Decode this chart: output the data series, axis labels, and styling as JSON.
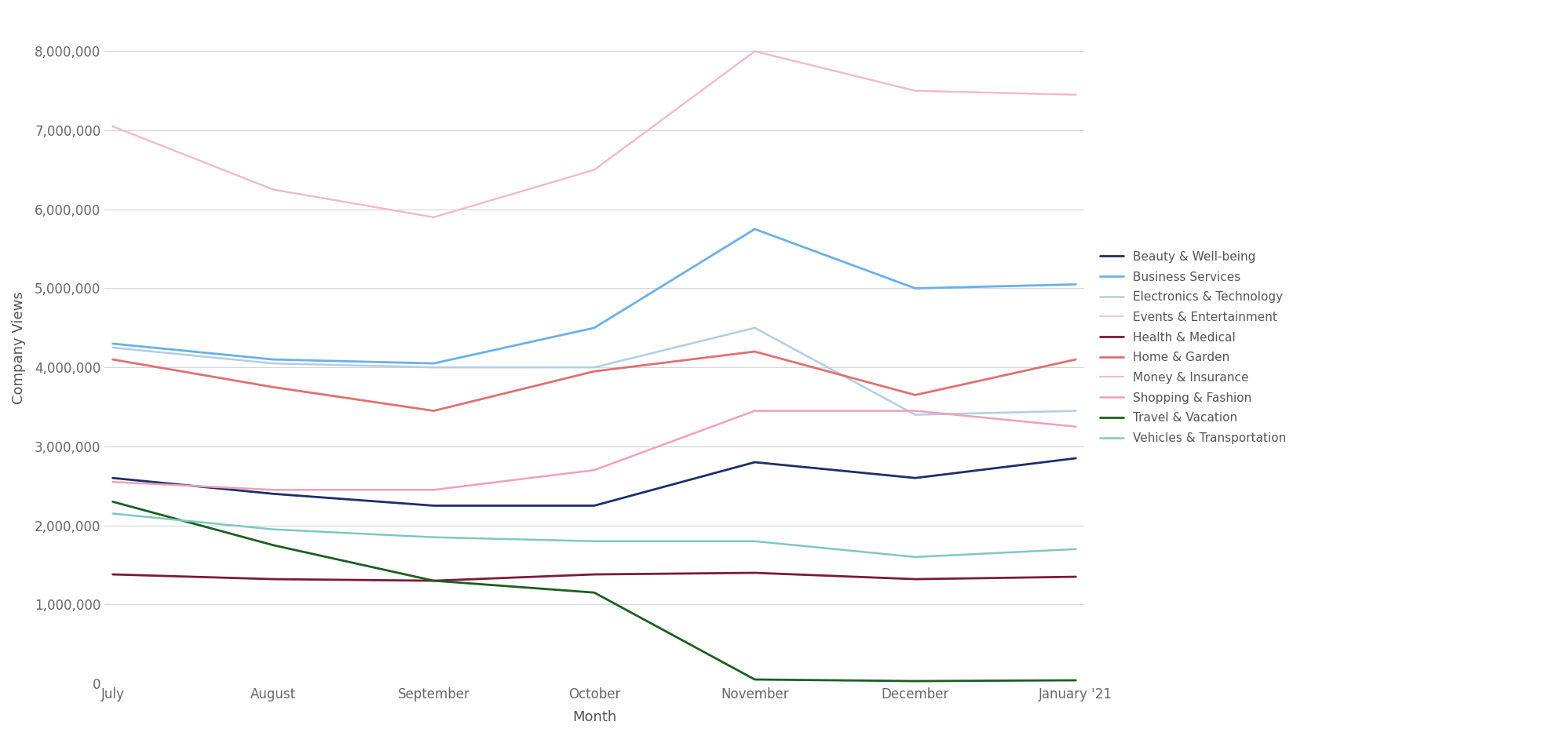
{
  "months": [
    "July",
    "August",
    "September",
    "October",
    "November",
    "December",
    "January '21"
  ],
  "series": {
    "Beauty & Well-being": {
      "values": [
        2600000,
        2400000,
        2250000,
        2250000,
        2800000,
        2600000,
        2850000
      ],
      "color": "#1c2d6e",
      "linewidth": 2.0
    },
    "Business Services": {
      "values": [
        4300000,
        4100000,
        4050000,
        4500000,
        5750000,
        5000000,
        5050000
      ],
      "color": "#6ab0e8",
      "linewidth": 2.0
    },
    "Electronics & Technology": {
      "values": [
        4250000,
        4050000,
        4000000,
        4000000,
        4500000,
        3400000,
        3450000
      ],
      "color": "#b3cde3",
      "linewidth": 1.8
    },
    "Events & Entertainment": {
      "values": [
        7050000,
        6250000,
        5900000,
        6500000,
        8000000,
        7500000,
        7450000
      ],
      "color": "#e8d0d4",
      "linewidth": 1.5
    },
    "Health & Medical": {
      "values": [
        1380000,
        1320000,
        1300000,
        1380000,
        1400000,
        1320000,
        1350000
      ],
      "color": "#7b1a38",
      "linewidth": 2.0
    },
    "Home & Garden": {
      "values": [
        4100000,
        3750000,
        3450000,
        3950000,
        4200000,
        3650000,
        4100000
      ],
      "color": "#e07070",
      "linewidth": 2.0
    },
    "Money & Insurance": {
      "values": [
        7050000,
        6250000,
        5900000,
        6500000,
        8000000,
        7500000,
        7450000
      ],
      "color": "#f4b8c8",
      "linewidth": 1.5
    },
    "Shopping & Fashion": {
      "values": [
        2550000,
        2450000,
        2450000,
        2700000,
        3450000,
        3450000,
        3250000
      ],
      "color": "#f0a0b8",
      "linewidth": 1.8
    },
    "Travel & Vacation": {
      "values": [
        2300000,
        1750000,
        1300000,
        1150000,
        50000,
        30000,
        40000
      ],
      "color": "#1b5e20",
      "linewidth": 2.0
    },
    "Vehicles & Transportation": {
      "values": [
        2150000,
        1950000,
        1850000,
        1800000,
        1800000,
        1600000,
        1700000
      ],
      "color": "#7ec8c0",
      "linewidth": 1.8
    }
  },
  "xlabel": "Month",
  "ylabel": "Company Views",
  "ylim": [
    0,
    8500000
  ],
  "yticks": [
    0,
    1000000,
    2000000,
    3000000,
    4000000,
    5000000,
    6000000,
    7000000,
    8000000
  ],
  "background_color": "#ffffff",
  "grid_color": "#d5d5d5",
  "figsize": [
    19.96,
    9.38
  ],
  "dpi": 100
}
